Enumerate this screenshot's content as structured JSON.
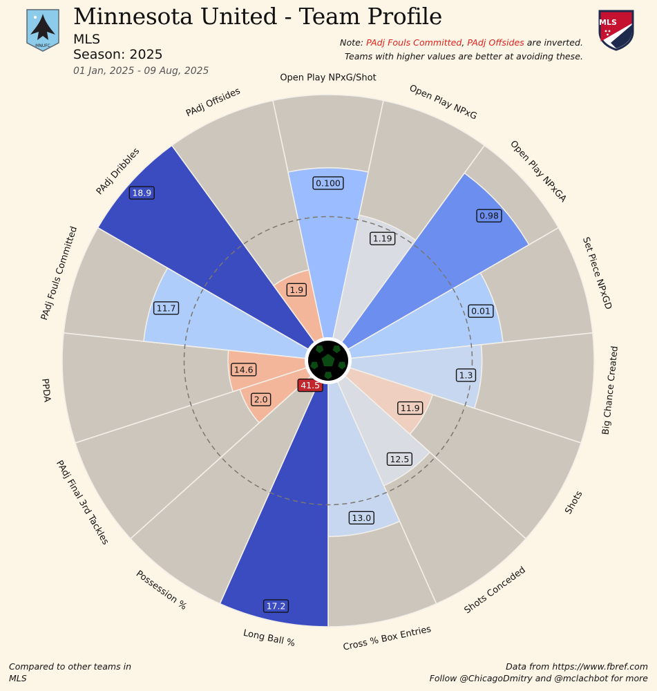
{
  "header": {
    "title": "Minnesota United - Team Profile",
    "league": "MLS",
    "season": "Season: 2025",
    "date_range": "01 Jan, 2025 - 09 Aug, 2025",
    "note_prefix": "Note: ",
    "note_inv1": "PAdj Fouls Committed",
    "note_sep": ", ",
    "note_inv2": "PAdj Offsides",
    "note_suffix": " are inverted.",
    "note_line2": "Teams with higher values are better at avoiding these.",
    "team_logo_icon": "minnesota-united-loon-crest-icon",
    "team_logo_text": "MNUFC",
    "league_logo_icon": "mls-crest-icon",
    "league_logo_text": "MLS"
  },
  "footer": {
    "left_line1": "Compared to other teams in",
    "left_line2": "MLS",
    "right_line1": "Data from https://www.fbref.com",
    "right_line2": "Follow @ChicagoDmitry and @mclachbot for more"
  },
  "chart_data": {
    "type": "radar-bar",
    "start_direction": "up",
    "order": "clockwise",
    "percentile_range": [
      0,
      100
    ],
    "reference_ring": 50,
    "center_value": "41.5",
    "metrics": [
      {
        "label": "Open Play NPxG/Shot",
        "value": "0.100",
        "percentile": 70,
        "color": "#9bbcff",
        "label_color": "#9bbcff",
        "label_text": "#111111"
      },
      {
        "label": "Open Play NPxG",
        "value": "1.19",
        "percentile": 52,
        "color": "#d9dce2",
        "label_color": "#d9dce2",
        "label_text": "#111111"
      },
      {
        "label": "Open Play NPxGA",
        "value": "0.98",
        "percentile": 86,
        "color": "#6b8eef",
        "label_color": "#6b8eef",
        "label_text": "#111111"
      },
      {
        "label": "Set Piece NPxGD",
        "value": "0.01",
        "percentile": 63,
        "color": "#aecdfb",
        "label_color": "#aecdfb",
        "label_text": "#111111"
      },
      {
        "label": "Big Chance Created",
        "value": "1.3",
        "percentile": 54,
        "color": "#c7d7ef",
        "label_color": "#c7d7ef",
        "label_text": "#111111"
      },
      {
        "label": "Shots",
        "value": "11.9",
        "percentile": 36,
        "color": "#efcfbf",
        "label_color": "#efcfbf",
        "label_text": "#111111"
      },
      {
        "label": "Shots Conceded",
        "value": "12.5",
        "percentile": 47,
        "color": "#d9dce2",
        "label_color": "#d9dce2",
        "label_text": "#111111"
      },
      {
        "label": "Cross % Box Entries",
        "value": "13.0",
        "percentile": 63,
        "color": "#c7d7ef",
        "label_color": "#c7d7ef",
        "label_text": "#111111"
      },
      {
        "label": "Long Ball %",
        "value": "17.2",
        "percentile": 100,
        "color": "#3b4cc0",
        "label_color": "#3b4cc0",
        "label_text": "#ffffff"
      },
      {
        "label": "Possession %",
        "value": "41.5",
        "percentile": 0,
        "color": "#b40426",
        "label_color": "#c0282d",
        "label_text": "#ffffff"
      },
      {
        "label": "PAdj Final 3rd Tackles",
        "value": "2.0",
        "percentile": 29,
        "color": "#f4b69a",
        "label_color": "#f4b69a",
        "label_text": "#111111"
      },
      {
        "label": "PPDA",
        "value": "14.6",
        "percentile": 32,
        "color": "#f4b69a",
        "label_color": "#f4b69a",
        "label_text": "#111111"
      },
      {
        "label": "PAdj Fouls Committed",
        "value": "11.7",
        "percentile": 67,
        "color": "#aecdfb",
        "label_color": "#aecdfb",
        "label_text": "#111111"
      },
      {
        "label": "PAdj Dribbles",
        "value": "18.9",
        "percentile": 100,
        "color": "#3b4cc0",
        "label_color": "#3b4cc0",
        "label_text": "#ffffff"
      },
      {
        "label": "PAdj Offsides",
        "value": "1.9",
        "percentile": 29,
        "color": "#f4b69a",
        "label_color": "#f4b69a",
        "label_text": "#111111"
      }
    ]
  },
  "colors": {
    "background": "#fdf5e6",
    "slice_background": "#cdc6bd",
    "slice_edge": "#f2efe9",
    "reference_ring": "#7a7670",
    "note_highlight": "#e0201b",
    "ball_grass": "#0b4a12"
  }
}
